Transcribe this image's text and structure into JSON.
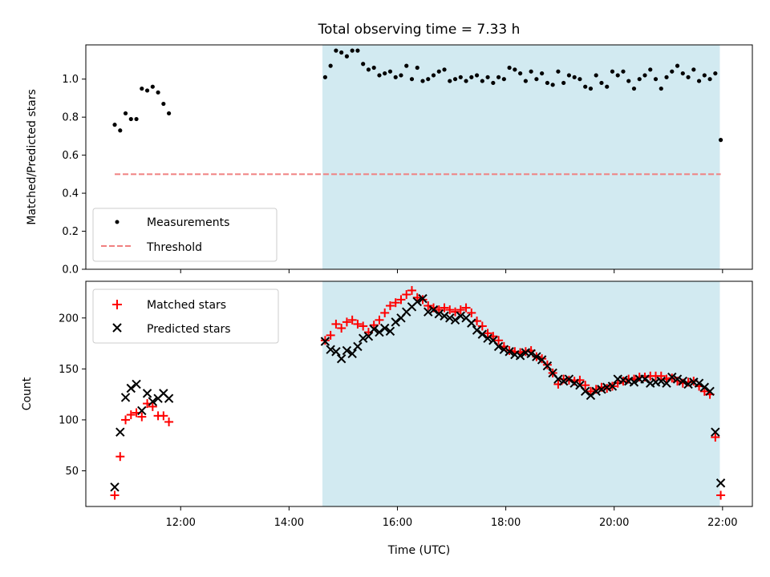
{
  "chart_data": [
    {
      "type": "scatter",
      "title": "Total observing time = 7.33 h",
      "xlabel": "",
      "ylabel": "Matched/Predicted stars",
      "x_range_hours": [
        10.25,
        22.55
      ],
      "ylim": [
        0,
        1.18
      ],
      "yticks": [
        0.0,
        0.2,
        0.4,
        0.6,
        0.8,
        1.0
      ],
      "ytick_labels": [
        "0.0",
        "0.2",
        "0.4",
        "0.6",
        "0.8",
        "1.0"
      ],
      "grid": false,
      "legend_placement": "lower-left",
      "shaded_region": {
        "from": "14:37",
        "to": "21:57",
        "color": "#add8e6"
      },
      "series": [
        {
          "name": "Measurements",
          "style": "dot",
          "color": "#000000",
          "x": [
            "10:47",
            "10:53",
            "10:59",
            "11:05",
            "11:11",
            "11:17",
            "11:23",
            "11:29",
            "11:35",
            "11:41",
            "11:47",
            "14:40",
            "14:46",
            "14:52",
            "14:58",
            "15:04",
            "15:10",
            "15:16",
            "15:22",
            "15:28",
            "15:34",
            "15:40",
            "15:46",
            "15:52",
            "15:58",
            "16:04",
            "16:10",
            "16:16",
            "16:22",
            "16:28",
            "16:34",
            "16:40",
            "16:46",
            "16:52",
            "16:58",
            "17:04",
            "17:10",
            "17:16",
            "17:22",
            "17:28",
            "17:34",
            "17:40",
            "17:46",
            "17:52",
            "17:58",
            "18:04",
            "18:10",
            "18:16",
            "18:22",
            "18:28",
            "18:34",
            "18:40",
            "18:46",
            "18:52",
            "18:58",
            "19:04",
            "19:10",
            "19:16",
            "19:22",
            "19:28",
            "19:34",
            "19:40",
            "19:46",
            "19:52",
            "19:58",
            "20:04",
            "20:10",
            "20:16",
            "20:22",
            "20:28",
            "20:34",
            "20:40",
            "20:46",
            "20:52",
            "20:58",
            "21:04",
            "21:10",
            "21:16",
            "21:22",
            "21:28",
            "21:34",
            "21:40",
            "21:46",
            "21:52",
            "21:58"
          ],
          "y": [
            0.76,
            0.73,
            0.82,
            0.79,
            0.79,
            0.95,
            0.94,
            0.96,
            0.93,
            0.87,
            0.82,
            1.01,
            1.07,
            1.15,
            1.14,
            1.12,
            1.15,
            1.15,
            1.08,
            1.05,
            1.06,
            1.02,
            1.03,
            1.04,
            1.01,
            1.02,
            1.07,
            1.0,
            1.06,
            0.99,
            1.0,
            1.02,
            1.04,
            1.05,
            0.99,
            1.0,
            1.01,
            0.99,
            1.01,
            1.02,
            0.99,
            1.01,
            0.98,
            1.01,
            1.0,
            1.06,
            1.05,
            1.03,
            0.99,
            1.04,
            1.0,
            1.03,
            0.98,
            0.97,
            1.04,
            0.98,
            1.02,
            1.01,
            1.0,
            0.96,
            0.95,
            1.02,
            0.98,
            0.96,
            1.04,
            1.02,
            1.04,
            0.99,
            0.95,
            1.0,
            1.02,
            1.05,
            1.0,
            0.95,
            1.01,
            1.04,
            1.07,
            1.03,
            1.01,
            1.05,
            0.99,
            1.02,
            1.0,
            1.03,
            0.68
          ]
        },
        {
          "name": "Threshold",
          "style": "dashed",
          "color": "#f08080",
          "x": [
            "10:47",
            "21:58"
          ],
          "y": [
            0.5,
            0.5
          ]
        }
      ]
    },
    {
      "type": "scatter",
      "title": "",
      "xlabel": "Time (UTC)",
      "ylabel": "Count",
      "x_range_hours": [
        10.25,
        22.55
      ],
      "ylim": [
        15,
        236
      ],
      "yticks": [
        50,
        100,
        150,
        200
      ],
      "ytick_labels": [
        "50",
        "100",
        "150",
        "200"
      ],
      "xticks": [
        "12:00",
        "14:00",
        "16:00",
        "18:00",
        "20:00",
        "22:00"
      ],
      "grid": false,
      "legend_placement": "top-left",
      "shaded_region": {
        "from": "14:37",
        "to": "21:57",
        "color": "#add8e6"
      },
      "series": [
        {
          "name": "Matched stars",
          "style": "plus",
          "color": "#ff0000",
          "x": [
            "10:47",
            "10:53",
            "10:59",
            "11:05",
            "11:11",
            "11:17",
            "11:23",
            "11:29",
            "11:35",
            "11:41",
            "11:47",
            "14:40",
            "14:46",
            "14:52",
            "14:58",
            "15:04",
            "15:10",
            "15:16",
            "15:22",
            "15:28",
            "15:34",
            "15:40",
            "15:46",
            "15:52",
            "15:58",
            "16:04",
            "16:10",
            "16:16",
            "16:22",
            "16:28",
            "16:34",
            "16:40",
            "16:46",
            "16:52",
            "16:58",
            "17:04",
            "17:10",
            "17:16",
            "17:22",
            "17:28",
            "17:34",
            "17:40",
            "17:46",
            "17:52",
            "17:58",
            "18:04",
            "18:10",
            "18:16",
            "18:22",
            "18:28",
            "18:34",
            "18:40",
            "18:46",
            "18:52",
            "18:58",
            "19:04",
            "19:10",
            "19:16",
            "19:22",
            "19:28",
            "19:34",
            "19:40",
            "19:46",
            "19:52",
            "19:58",
            "20:04",
            "20:10",
            "20:16",
            "20:22",
            "20:28",
            "20:34",
            "20:40",
            "20:46",
            "20:52",
            "20:58",
            "21:04",
            "21:10",
            "21:16",
            "21:22",
            "21:28",
            "21:34",
            "21:40",
            "21:46",
            "21:52",
            "21:58"
          ],
          "y": [
            26,
            64,
            100,
            105,
            107,
            103,
            116,
            113,
            104,
            104,
            98,
            178,
            183,
            194,
            190,
            196,
            198,
            194,
            192,
            186,
            193,
            198,
            205,
            212,
            215,
            218,
            223,
            227,
            220,
            218,
            212,
            210,
            208,
            210,
            208,
            206,
            208,
            210,
            205,
            197,
            192,
            185,
            182,
            178,
            172,
            168,
            167,
            166,
            167,
            168,
            162,
            160,
            154,
            146,
            135,
            140,
            139,
            138,
            139,
            134,
            128,
            130,
            132,
            131,
            133,
            136,
            138,
            140,
            140,
            142,
            142,
            143,
            143,
            143,
            140,
            141,
            138,
            136,
            137,
            138,
            133,
            128,
            125,
            83,
            26
          ]
        },
        {
          "name": "Predicted stars",
          "style": "x",
          "color": "#000000",
          "x": [
            "10:47",
            "10:53",
            "10:59",
            "11:05",
            "11:11",
            "11:17",
            "11:23",
            "11:29",
            "11:35",
            "11:41",
            "11:47",
            "14:40",
            "14:46",
            "14:52",
            "14:58",
            "15:04",
            "15:10",
            "15:16",
            "15:22",
            "15:28",
            "15:34",
            "15:40",
            "15:46",
            "15:52",
            "15:58",
            "16:04",
            "16:10",
            "16:16",
            "16:22",
            "16:28",
            "16:34",
            "16:40",
            "16:46",
            "16:52",
            "16:58",
            "17:04",
            "17:10",
            "17:16",
            "17:22",
            "17:28",
            "17:34",
            "17:40",
            "17:46",
            "17:52",
            "17:58",
            "18:04",
            "18:10",
            "18:16",
            "18:22",
            "18:28",
            "18:34",
            "18:40",
            "18:46",
            "18:52",
            "18:58",
            "19:04",
            "19:10",
            "19:16",
            "19:22",
            "19:28",
            "19:34",
            "19:40",
            "19:46",
            "19:52",
            "19:58",
            "20:04",
            "20:10",
            "20:16",
            "20:22",
            "20:28",
            "20:34",
            "20:40",
            "20:46",
            "20:52",
            "20:58",
            "21:04",
            "21:10",
            "21:16",
            "21:22",
            "21:28",
            "21:34",
            "21:40",
            "21:46",
            "21:52",
            "21:58"
          ],
          "y": [
            34,
            88,
            122,
            131,
            135,
            109,
            126,
            118,
            121,
            126,
            121,
            177,
            169,
            167,
            160,
            168,
            165,
            172,
            180,
            182,
            189,
            186,
            190,
            187,
            196,
            200,
            206,
            211,
            216,
            219,
            206,
            208,
            204,
            202,
            200,
            198,
            202,
            200,
            195,
            188,
            184,
            180,
            178,
            172,
            169,
            167,
            164,
            163,
            166,
            165,
            162,
            159,
            153,
            146,
            140,
            138,
            140,
            136,
            134,
            128,
            124,
            128,
            130,
            132,
            133,
            140,
            139,
            138,
            137,
            140,
            140,
            136,
            137,
            138,
            136,
            142,
            140,
            138,
            135,
            137,
            136,
            132,
            128,
            88,
            38
          ]
        }
      ]
    }
  ]
}
